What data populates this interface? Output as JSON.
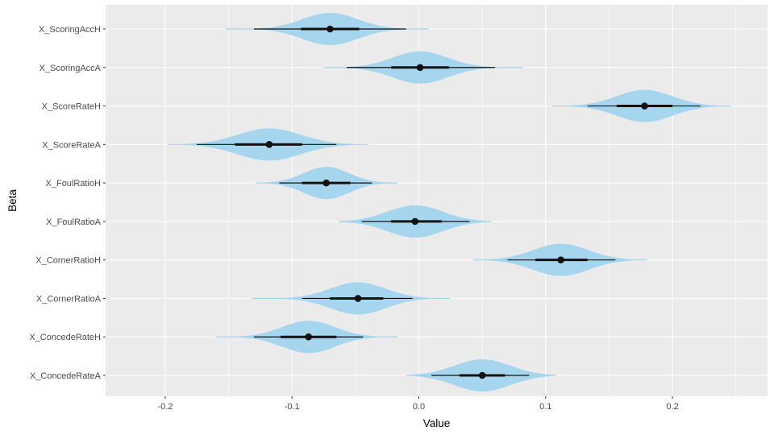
{
  "chart_data": {
    "type": "violin-interval",
    "xlabel": "Value",
    "ylabel": "Beta",
    "xlim": [
      -0.247,
      0.275
    ],
    "xticks": [
      -0.2,
      -0.1,
      0,
      0.1,
      0.2
    ],
    "xtick_labels": [
      "-0.2",
      "-0.1",
      "0.0",
      "0.1",
      "0.2"
    ],
    "grid": true,
    "colors": {
      "panel": "#ebebeb",
      "grid": "#ffffff",
      "violin": "#a6d6ee",
      "interval": "#111111"
    },
    "categories": [
      "X_ScoringAccH",
      "X_ScoringAccA",
      "X_ScoreRateH",
      "X_ScoreRateA",
      "X_FoulRatioH",
      "X_FoulRatioA",
      "X_CornerRatioH",
      "X_CornerRatioA",
      "X_ConcedeRateH",
      "X_ConcedeRateA"
    ],
    "series": [
      {
        "label": "X_ScoringAccH",
        "median": -0.07,
        "sd": 0.022,
        "ci50": [
          -0.093,
          -0.047
        ],
        "ci95": [
          -0.13,
          -0.01
        ],
        "range": [
          -0.152,
          0.008
        ]
      },
      {
        "label": "X_ScoringAccA",
        "median": 0.001,
        "sd": 0.022,
        "ci50": [
          -0.022,
          0.024
        ],
        "ci95": [
          -0.057,
          0.06
        ],
        "range": [
          -0.075,
          0.082
        ]
      },
      {
        "label": "X_ScoreRateH",
        "median": 0.178,
        "sd": 0.022,
        "ci50": [
          0.156,
          0.2
        ],
        "ci95": [
          0.133,
          0.222
        ],
        "range": [
          0.105,
          0.246
        ]
      },
      {
        "label": "X_ScoreRateA",
        "median": -0.118,
        "sd": 0.025,
        "ci50": [
          -0.145,
          -0.092
        ],
        "ci95": [
          -0.175,
          -0.065
        ],
        "range": [
          -0.198,
          -0.04
        ]
      },
      {
        "label": "X_FoulRatioH",
        "median": -0.073,
        "sd": 0.018,
        "ci50": [
          -0.092,
          -0.054
        ],
        "ci95": [
          -0.11,
          -0.037
        ],
        "range": [
          -0.128,
          -0.017
        ]
      },
      {
        "label": "X_FoulRatioA",
        "median": -0.003,
        "sd": 0.022,
        "ci50": [
          -0.022,
          0.018
        ],
        "ci95": [
          -0.045,
          0.04
        ],
        "range": [
          -0.063,
          0.057
        ]
      },
      {
        "label": "X_CornerRatioH",
        "median": 0.112,
        "sd": 0.022,
        "ci50": [
          0.092,
          0.133
        ],
        "ci95": [
          0.07,
          0.155
        ],
        "range": [
          0.043,
          0.18
        ]
      },
      {
        "label": "X_CornerRatioA",
        "median": -0.048,
        "sd": 0.022,
        "ci50": [
          -0.07,
          -0.028
        ],
        "ci95": [
          -0.092,
          -0.005
        ],
        "range": [
          -0.132,
          0.025
        ]
      },
      {
        "label": "X_ConcedeRateH",
        "median": -0.087,
        "sd": 0.021,
        "ci50": [
          -0.109,
          -0.065
        ],
        "ci95": [
          -0.13,
          -0.044
        ],
        "range": [
          -0.16,
          -0.017
        ]
      },
      {
        "label": "X_ConcedeRateA",
        "median": 0.05,
        "sd": 0.022,
        "ci50": [
          0.032,
          0.068
        ],
        "ci95": [
          0.01,
          0.087
        ],
        "range": [
          -0.01,
          0.108
        ]
      }
    ]
  }
}
